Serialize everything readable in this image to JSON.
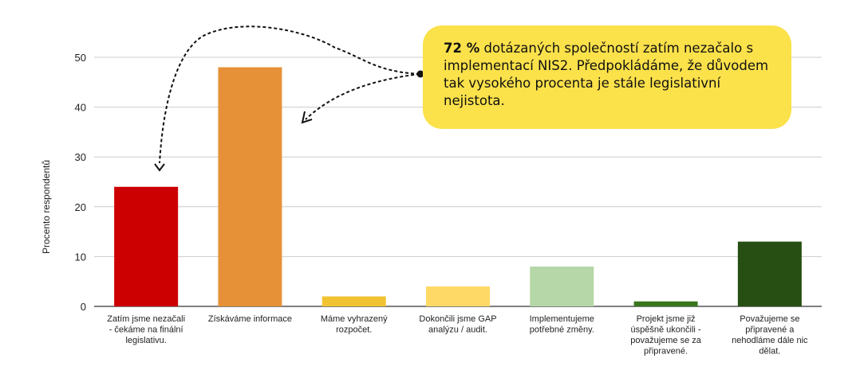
{
  "chart_data": {
    "type": "bar",
    "ylabel": "Procento respondentů",
    "ylim": [
      0,
      55
    ],
    "yticks": [
      0,
      10,
      20,
      30,
      40,
      50
    ],
    "grid": true,
    "categories": [
      [
        "Zatím jsme nezačali",
        "- čekáme na finální",
        "legislativu."
      ],
      [
        "Získáváme informace"
      ],
      [
        "Máme vyhrazený",
        "rozpočet."
      ],
      [
        "Dokončili jsme GAP",
        "analýzu / audit."
      ],
      [
        "Implementujeme",
        "potřebné změny."
      ],
      [
        "Projekt jsme již",
        "úspěšně ukončili -",
        "považujeme se za",
        "připravené."
      ],
      [
        "Považujeme se",
        "připravené a",
        "nehodláme dále nic",
        "dělat."
      ]
    ],
    "values": [
      24,
      48,
      2,
      4,
      8,
      1,
      13
    ],
    "colors": [
      "#cc0000",
      "#e69138",
      "#f1c232",
      "#ffd966",
      "#b6d7a8",
      "#38761d",
      "#274e13"
    ]
  },
  "callout": {
    "bold": "72 %",
    "text": " dotázaných společností zatím nezačalo s implementací NIS2. Předpokládáme, že důvodem tak vysokého procenta je stále legislativní nejistota.",
    "color": "#fbe14a"
  }
}
